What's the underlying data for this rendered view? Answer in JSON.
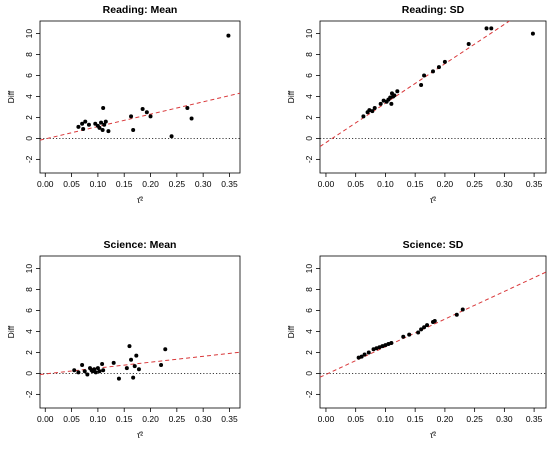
{
  "chart_data": [
    {
      "type": "scatter",
      "title": "Reading: Mean",
      "xlabel": "τ̂²",
      "ylabel": "Diff",
      "xlim": [
        -0.01,
        0.37
      ],
      "ylim": [
        -3.3,
        11.2
      ],
      "xticks": [
        "0.00",
        "0.05",
        "0.10",
        "0.15",
        "0.20",
        "0.25",
        "0.30",
        "0.35"
      ],
      "yticks": [
        "-2",
        "0",
        "2",
        "4",
        "6",
        "8",
        "10"
      ],
      "points": [
        [
          0.063,
          1.1
        ],
        [
          0.07,
          1.4
        ],
        [
          0.072,
          0.9
        ],
        [
          0.076,
          1.6
        ],
        [
          0.083,
          1.3
        ],
        [
          0.095,
          1.4
        ],
        [
          0.1,
          1.2
        ],
        [
          0.103,
          1.0
        ],
        [
          0.106,
          1.5
        ],
        [
          0.109,
          0.8
        ],
        [
          0.11,
          2.9
        ],
        [
          0.112,
          1.3
        ],
        [
          0.115,
          1.6
        ],
        [
          0.12,
          0.7
        ],
        [
          0.163,
          2.1
        ],
        [
          0.167,
          0.8
        ],
        [
          0.185,
          2.8
        ],
        [
          0.193,
          2.5
        ],
        [
          0.2,
          2.1
        ],
        [
          0.24,
          0.2
        ],
        [
          0.27,
          2.9
        ],
        [
          0.278,
          1.9
        ],
        [
          0.348,
          9.8
        ]
      ],
      "fit_line": {
        "intercept": -0.05,
        "slope": 11.8
      },
      "reference_line": 0
    },
    {
      "type": "scatter",
      "title": "Reading: SD",
      "xlabel": "τ̂²",
      "ylabel": "Diff",
      "xlim": [
        -0.01,
        0.37
      ],
      "ylim": [
        -3.3,
        11.2
      ],
      "xticks": [
        "0.00",
        "0.05",
        "0.10",
        "0.15",
        "0.20",
        "0.25",
        "0.30",
        "0.35"
      ],
      "yticks": [
        "-2",
        "0",
        "2",
        "4",
        "6",
        "8",
        "10"
      ],
      "points": [
        [
          0.063,
          2.1
        ],
        [
          0.07,
          2.5
        ],
        [
          0.073,
          2.7
        ],
        [
          0.078,
          2.6
        ],
        [
          0.082,
          2.9
        ],
        [
          0.092,
          3.3
        ],
        [
          0.097,
          3.6
        ],
        [
          0.102,
          3.5
        ],
        [
          0.105,
          3.7
        ],
        [
          0.108,
          3.9
        ],
        [
          0.11,
          3.3
        ],
        [
          0.111,
          4.3
        ],
        [
          0.113,
          4.0
        ],
        [
          0.115,
          4.1
        ],
        [
          0.12,
          4.5
        ],
        [
          0.16,
          5.1
        ],
        [
          0.165,
          6.0
        ],
        [
          0.18,
          6.4
        ],
        [
          0.19,
          6.8
        ],
        [
          0.2,
          7.3
        ],
        [
          0.24,
          9.0
        ],
        [
          0.27,
          10.5
        ],
        [
          0.278,
          10.5
        ],
        [
          0.348,
          10.0
        ]
      ],
      "fit_line": {
        "intercept": -0.4,
        "slope": 37.6
      },
      "reference_line": 0
    },
    {
      "type": "scatter",
      "title": "Science: Mean",
      "xlabel": "τ̂²",
      "ylabel": "Diff",
      "xlim": [
        -0.01,
        0.37
      ],
      "ylim": [
        -3.3,
        11.2
      ],
      "xticks": [
        "0.00",
        "0.05",
        "0.10",
        "0.15",
        "0.20",
        "0.25",
        "0.30",
        "0.35"
      ],
      "yticks": [
        "-2",
        "0",
        "2",
        "4",
        "6",
        "8",
        "10"
      ],
      "points": [
        [
          0.055,
          0.3
        ],
        [
          0.063,
          0.1
        ],
        [
          0.07,
          0.8
        ],
        [
          0.075,
          0.2
        ],
        [
          0.08,
          -0.1
        ],
        [
          0.085,
          0.5
        ],
        [
          0.088,
          0.3
        ],
        [
          0.09,
          0.2
        ],
        [
          0.093,
          0.4
        ],
        [
          0.096,
          0.1
        ],
        [
          0.1,
          0.5
        ],
        [
          0.103,
          0.2
        ],
        [
          0.108,
          0.9
        ],
        [
          0.11,
          0.3
        ],
        [
          0.13,
          1.0
        ],
        [
          0.14,
          -0.5
        ],
        [
          0.155,
          0.5
        ],
        [
          0.16,
          2.6
        ],
        [
          0.163,
          1.3
        ],
        [
          0.167,
          -0.4
        ],
        [
          0.17,
          0.7
        ],
        [
          0.173,
          1.7
        ],
        [
          0.178,
          0.4
        ],
        [
          0.22,
          0.8
        ],
        [
          0.228,
          2.3
        ]
      ],
      "fit_line": {
        "intercept": -0.05,
        "slope": 5.6
      },
      "reference_line": 0
    },
    {
      "type": "scatter",
      "title": "Science: SD",
      "xlabel": "τ̂²",
      "ylabel": "Diff",
      "xlim": [
        -0.01,
        0.37
      ],
      "ylim": [
        -3.3,
        11.2
      ],
      "xticks": [
        "0.00",
        "0.05",
        "0.10",
        "0.15",
        "0.20",
        "0.25",
        "0.30",
        "0.35"
      ],
      "yticks": [
        "-2",
        "0",
        "2",
        "4",
        "6",
        "8",
        "10"
      ],
      "points": [
        [
          0.055,
          1.5
        ],
        [
          0.06,
          1.6
        ],
        [
          0.065,
          1.8
        ],
        [
          0.072,
          2.0
        ],
        [
          0.08,
          2.3
        ],
        [
          0.085,
          2.4
        ],
        [
          0.09,
          2.5
        ],
        [
          0.095,
          2.6
        ],
        [
          0.1,
          2.7
        ],
        [
          0.105,
          2.8
        ],
        [
          0.11,
          2.9
        ],
        [
          0.13,
          3.5
        ],
        [
          0.14,
          3.7
        ],
        [
          0.155,
          3.9
        ],
        [
          0.16,
          4.2
        ],
        [
          0.165,
          4.4
        ],
        [
          0.17,
          4.6
        ],
        [
          0.18,
          4.9
        ],
        [
          0.183,
          5.0
        ],
        [
          0.22,
          5.6
        ],
        [
          0.23,
          6.1
        ]
      ],
      "fit_line": {
        "intercept": -0.1,
        "slope": 26.4
      },
      "reference_line": 0
    }
  ]
}
